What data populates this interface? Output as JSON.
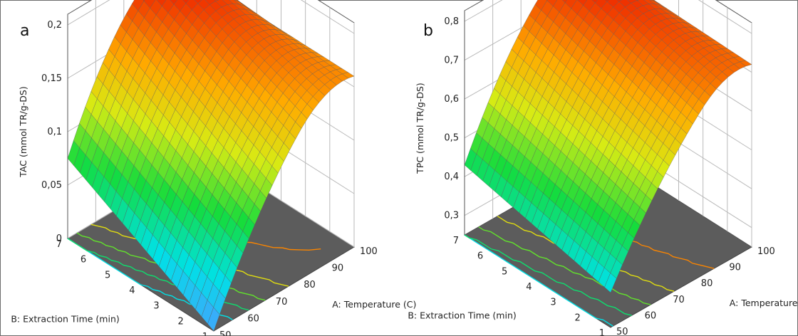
{
  "chart_data": [
    {
      "type": "surface3d",
      "panel_label": "a",
      "zlabel": "TAC (mmol TR/g-DS)",
      "xlabel": "A: Temperature (C)",
      "ylabel": "B: Extraction Time (min)",
      "x_ticks": [
        "50",
        "60",
        "70",
        "80",
        "90",
        "100"
      ],
      "y_ticks": [
        "1",
        "2",
        "3",
        "4",
        "5",
        "6",
        "7"
      ],
      "z_ticks": [
        "0",
        "0,05",
        "0,1",
        "0,15",
        "0,2"
      ],
      "xlim": [
        50,
        100
      ],
      "ylim": [
        1,
        7
      ],
      "zlim": [
        0,
        0.2
      ],
      "corner_values": {
        "T50_t1": 0.0,
        "T50_t7": 0.075,
        "T100_t1": 0.16,
        "T100_t7": 0.16
      },
      "peak": {
        "temperature": 80,
        "time": 7,
        "value": 0.2
      },
      "colormap": "blue-cyan-green-yellow-orange-red",
      "floor_contours": true,
      "grid": true
    },
    {
      "type": "surface3d",
      "panel_label": "b",
      "zlabel": "TPC (mmol TR/g-DS)",
      "xlabel": "A: Temperature (C)",
      "ylabel": "B: Extraction Time (min)",
      "x_ticks": [
        "50",
        "60",
        "70",
        "80",
        "90",
        "100"
      ],
      "y_ticks": [
        "1",
        "2",
        "3",
        "4",
        "5",
        "6",
        "7"
      ],
      "z_ticks": [
        "0,3",
        "0,4",
        "0,5",
        "0,6",
        "0,7",
        "0,8"
      ],
      "xlim": [
        50,
        100
      ],
      "ylim": [
        1,
        7
      ],
      "zlim": [
        0.25,
        0.8
      ],
      "corner_values": {
        "T50_t1": 0.34,
        "T50_t7": 0.43,
        "T100_t1": 0.72,
        "T100_t7": 0.73
      },
      "peak": {
        "temperature": 82,
        "time": 7,
        "value": 0.79
      },
      "colormap": "blue-cyan-green-yellow-orange-red",
      "floor_contours": true,
      "grid": true
    }
  ]
}
